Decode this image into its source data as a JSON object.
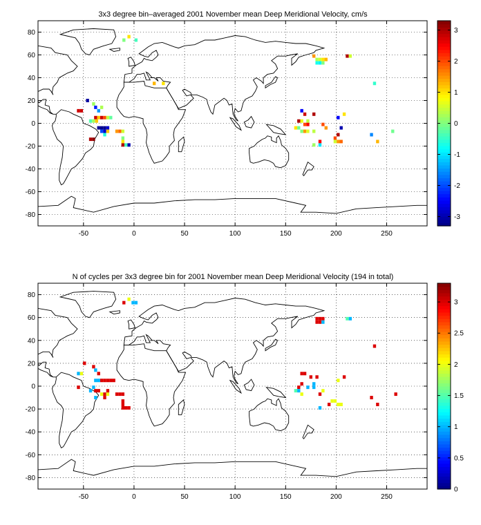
{
  "chart_data": [
    {
      "type": "heatmap",
      "title": "3x3 degree bin–averaged 2001 November mean Deep Meridional Velocity, cm/s",
      "xlabel": "",
      "ylabel": "",
      "xlim": [
        -95,
        290
      ],
      "ylim": [
        -90,
        90
      ],
      "x_ticks": [
        -50,
        0,
        50,
        100,
        150,
        200,
        250
      ],
      "y_ticks": [
        -80,
        -60,
        -40,
        -20,
        0,
        20,
        40,
        60,
        80
      ],
      "grid": "dotted",
      "colorbar": {
        "min": -3.3,
        "max": 3.3,
        "ticks": [
          -3,
          -2,
          -1,
          0,
          1,
          2,
          3
        ],
        "colormap": "jet"
      },
      "cells": [
        [
          -10,
          73,
          0.0
        ],
        [
          -5,
          76,
          1.0
        ],
        [
          2,
          73,
          -0.4
        ],
        [
          -55,
          11,
          2.8
        ],
        [
          -52,
          11,
          2.8
        ],
        [
          -46,
          20,
          -3.1
        ],
        [
          -40,
          17,
          0.2
        ],
        [
          -38,
          14,
          -2.3
        ],
        [
          -35,
          11,
          -1.5
        ],
        [
          -32,
          14,
          0.3
        ],
        [
          -38,
          5,
          2.8
        ],
        [
          -35,
          5,
          1.2
        ],
        [
          -32,
          5,
          2.8
        ],
        [
          -29,
          5,
          2.0
        ],
        [
          -26,
          5,
          0.4
        ],
        [
          -23,
          5,
          -0.2
        ],
        [
          -43,
          2,
          -0.3
        ],
        [
          -40,
          2,
          0.2
        ],
        [
          -37,
          2,
          1.2
        ],
        [
          -35,
          -4,
          -3.2
        ],
        [
          -32,
          -4,
          -3.2
        ],
        [
          -29,
          -4,
          -3.2
        ],
        [
          -26,
          -4,
          -2.8
        ],
        [
          -32,
          -7,
          -2.0
        ],
        [
          -29,
          -7,
          -2.8
        ],
        [
          -26,
          -7,
          1.2
        ],
        [
          -29,
          -10,
          -0.6
        ],
        [
          -43,
          -14,
          3.0
        ],
        [
          -40,
          -14,
          3.2
        ],
        [
          -17,
          -7,
          1.5
        ],
        [
          -14,
          -7,
          1.8
        ],
        [
          -11,
          -7,
          0.5
        ],
        [
          -11,
          -13,
          0.0
        ],
        [
          -11,
          -16,
          1.0
        ],
        [
          -11,
          -19,
          3.0
        ],
        [
          -8,
          -19,
          -0.4
        ],
        [
          -5,
          -19,
          -3.0
        ],
        [
          20,
          35,
          1.3
        ],
        [
          29,
          35,
          1.0
        ],
        [
          178,
          59,
          1.5
        ],
        [
          181,
          56,
          0.3
        ],
        [
          184,
          56,
          0.5
        ],
        [
          187,
          56,
          1.0
        ],
        [
          190,
          56,
          1.3
        ],
        [
          181,
          53,
          -0.7
        ],
        [
          184,
          53,
          -0.9
        ],
        [
          187,
          53,
          0.0
        ],
        [
          211,
          59,
          3.0
        ],
        [
          214,
          59,
          0.5
        ],
        [
          238,
          35,
          -0.5
        ],
        [
          166,
          11,
          -2.5
        ],
        [
          169,
          8,
          2.8
        ],
        [
          178,
          8,
          3.0
        ],
        [
          163,
          2,
          3.0
        ],
        [
          166,
          2,
          0.7
        ],
        [
          172,
          2,
          0.4
        ],
        [
          160,
          -4,
          1.0
        ],
        [
          163,
          -4,
          -0.1
        ],
        [
          169,
          -1,
          2.0
        ],
        [
          172,
          -1,
          2.5
        ],
        [
          166,
          -7,
          0.0
        ],
        [
          169,
          -7,
          1.5
        ],
        [
          172,
          -7,
          0.6
        ],
        [
          178,
          -7,
          0.4
        ],
        [
          187,
          -1,
          2.0
        ],
        [
          190,
          -4,
          1.5
        ],
        [
          202,
          5,
          -2.5
        ],
        [
          205,
          -4,
          -3.0
        ],
        [
          208,
          8,
          1.0
        ],
        [
          199,
          -13,
          2.0
        ],
        [
          202,
          -16,
          1.5
        ],
        [
          205,
          -16,
          1.8
        ],
        [
          199,
          -16,
          0.5
        ],
        [
          184,
          -16,
          2.5
        ],
        [
          184,
          -19,
          -1.0
        ],
        [
          178,
          -19,
          0.2
        ],
        [
          235,
          -10,
          -1.6
        ],
        [
          241,
          -16,
          1.3
        ],
        [
          256,
          -7,
          -0.1
        ],
        [
          202,
          -10,
          3.0
        ]
      ]
    },
    {
      "type": "heatmap",
      "title": "N of cycles per 3x3 degree bin for 2001 November mean Deep Meridional Velocity (194 in total)",
      "xlabel": "",
      "ylabel": "",
      "xlim": [
        -95,
        290
      ],
      "ylim": [
        -90,
        90
      ],
      "x_ticks": [
        -50,
        0,
        50,
        100,
        150,
        200,
        250
      ],
      "y_ticks": [
        -80,
        -60,
        -40,
        -20,
        0,
        20,
        40,
        60,
        80
      ],
      "grid": "dotted",
      "colorbar": {
        "min": 0,
        "max": 3.3,
        "ticks": [
          0,
          0.5,
          1,
          1.5,
          2,
          2.5,
          3
        ],
        "colormap": "jet"
      },
      "cells": [
        [
          -10,
          73,
          3.0
        ],
        [
          -5,
          76,
          2.0
        ],
        [
          -1,
          73,
          1.0
        ],
        [
          2,
          73,
          1.0
        ],
        [
          -55,
          11,
          1.0
        ],
        [
          -52,
          11,
          2.0
        ],
        [
          -49,
          20,
          3.0
        ],
        [
          -40,
          17,
          3.0
        ],
        [
          -38,
          14,
          1.0
        ],
        [
          -35,
          11,
          3.0
        ],
        [
          -38,
          5,
          1.0
        ],
        [
          -35,
          5,
          1.0
        ],
        [
          -32,
          5,
          3.0
        ],
        [
          -29,
          5,
          3.0
        ],
        [
          -26,
          5,
          3.0
        ],
        [
          -23,
          5,
          3.0
        ],
        [
          -20,
          5,
          3.0
        ],
        [
          -55,
          -1,
          3.0
        ],
        [
          -43,
          -4,
          1.0
        ],
        [
          -40,
          -1,
          1.0
        ],
        [
          -38,
          -4,
          3.0
        ],
        [
          -35,
          -4,
          3.0
        ],
        [
          -32,
          -7,
          2.0
        ],
        [
          -29,
          -7,
          3.0
        ],
        [
          -26,
          -7,
          2.0
        ],
        [
          -38,
          -10,
          1.0
        ],
        [
          -29,
          -10,
          3.0
        ],
        [
          -26,
          -4,
          3.0
        ],
        [
          -17,
          -7,
          3.0
        ],
        [
          -14,
          -7,
          3.0
        ],
        [
          -11,
          -7,
          3.0
        ],
        [
          -11,
          -13,
          3.0
        ],
        [
          -11,
          -16,
          3.0
        ],
        [
          -11,
          -19,
          3.0
        ],
        [
          -8,
          -19,
          3.0
        ],
        [
          -5,
          -19,
          3.0
        ],
        [
          181,
          59,
          3.0
        ],
        [
          184,
          59,
          3.0
        ],
        [
          187,
          59,
          3.0
        ],
        [
          181,
          56,
          3.0
        ],
        [
          184,
          56,
          3.0
        ],
        [
          187,
          56,
          1.0
        ],
        [
          211,
          59,
          1.5
        ],
        [
          214,
          59,
          1.0
        ],
        [
          238,
          35,
          3.0
        ],
        [
          166,
          11,
          3.0
        ],
        [
          169,
          11,
          3.0
        ],
        [
          175,
          8,
          3.0
        ],
        [
          166,
          2,
          3.0
        ],
        [
          163,
          -1,
          3.0
        ],
        [
          160,
          -4,
          1.5
        ],
        [
          163,
          -4,
          1.0
        ],
        [
          166,
          -7,
          2.0
        ],
        [
          172,
          -1,
          1.0
        ],
        [
          178,
          -1,
          1.0
        ],
        [
          178,
          2,
          1.0
        ],
        [
          181,
          8,
          3.0
        ],
        [
          184,
          -7,
          3.0
        ],
        [
          187,
          -4,
          2.0
        ],
        [
          196,
          -13,
          2.0
        ],
        [
          199,
          -13,
          2.0
        ],
        [
          202,
          -16,
          2.0
        ],
        [
          205,
          -16,
          2.0
        ],
        [
          193,
          -16,
          3.0
        ],
        [
          184,
          -19,
          1.0
        ],
        [
          202,
          5,
          2.0
        ],
        [
          208,
          8,
          3.0
        ],
        [
          235,
          -10,
          3.0
        ],
        [
          241,
          -16,
          3.0
        ],
        [
          259,
          -7,
          3.0
        ]
      ]
    }
  ]
}
